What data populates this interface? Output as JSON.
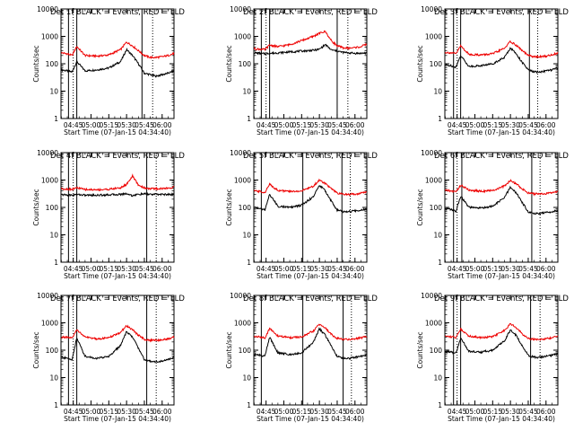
{
  "colors": {
    "events": "#000000",
    "lld": "#ee0000",
    "axis": "#000000",
    "background": "#ffffff"
  },
  "common": {
    "xlabel": "Start Time (07-Jan-15 04:34:40)",
    "ylabel": "Counts/sec",
    "x_tick_labels": [
      "04:45",
      "05:00",
      "05:15",
      "05:30",
      "05:45",
      "06:00"
    ],
    "y_tick_labels": [
      "1",
      "10",
      "100",
      "1000",
      "10000"
    ],
    "y_scale": "log"
  },
  "chart_data": [
    {
      "type": "line",
      "title": "Det 1f BLACK = Events, RED = LLD",
      "xlabel": "Start Time (07-Jan-15 04:34:40)",
      "ylabel": "Counts/sec",
      "xlim": [
        "04:34:40",
        "06:10"
      ],
      "ylim": [
        1,
        10000
      ],
      "yscale": "log",
      "x": [
        "04:35",
        "04:40",
        "04:44",
        "04:48",
        "04:55",
        "05:05",
        "05:15",
        "05:25",
        "05:30",
        "05:35",
        "05:40",
        "05:45",
        "05:50",
        "05:55",
        "06:00",
        "06:05",
        "06:10"
      ],
      "series": [
        {
          "name": "Events",
          "color": "#000000",
          "values": [
            60,
            55,
            50,
            120,
            55,
            60,
            70,
            120,
            330,
            200,
            100,
            45,
            40,
            35,
            40,
            45,
            55
          ]
        },
        {
          "name": "LLD",
          "color": "#ee0000",
          "values": [
            250,
            230,
            200,
            430,
            200,
            190,
            210,
            330,
            620,
            450,
            300,
            200,
            170,
            170,
            180,
            200,
            240
          ]
        }
      ],
      "vlines_solid": [
        "04:41",
        "04:48",
        "05:43"
      ],
      "vlines_dotted": [
        "04:45",
        "05:52"
      ]
    },
    {
      "type": "line",
      "title": "Det 2f BLACK = Events, RED = LLD",
      "xlabel": "Start Time (07-Jan-15 04:34:40)",
      "ylabel": "Counts/sec",
      "xlim": [
        "04:34:40",
        "06:10"
      ],
      "ylim": [
        1,
        10000
      ],
      "yscale": "log",
      "x": [
        "04:35",
        "04:40",
        "04:44",
        "04:48",
        "04:55",
        "05:05",
        "05:15",
        "05:25",
        "05:30",
        "05:35",
        "05:40",
        "05:45",
        "05:50",
        "05:55",
        "06:00",
        "06:05",
        "06:10"
      ],
      "series": [
        {
          "name": "Events",
          "color": "#000000",
          "values": [
            250,
            240,
            230,
            240,
            250,
            270,
            290,
            310,
            340,
            500,
            320,
            290,
            260,
            250,
            240,
            240,
            250
          ]
        },
        {
          "name": "LLD",
          "color": "#ee0000",
          "values": [
            350,
            340,
            330,
            480,
            420,
            500,
            700,
            1000,
            1300,
            1500,
            700,
            450,
            380,
            370,
            390,
            420,
            520
          ]
        }
      ],
      "vlines_solid": [
        "04:41",
        "04:48",
        "05:45"
      ],
      "vlines_dotted": [
        "04:45",
        "05:54"
      ]
    },
    {
      "type": "line",
      "title": "Det 3f BLACK = Events, RED = LLD",
      "xlabel": "Start Time (07-Jan-15 04:34:40)",
      "ylabel": "Counts/sec",
      "xlim": [
        "04:34:40",
        "06:10"
      ],
      "ylim": [
        1,
        10000
      ],
      "yscale": "log",
      "x": [
        "04:35",
        "04:40",
        "04:44",
        "04:48",
        "04:55",
        "05:05",
        "05:15",
        "05:25",
        "05:30",
        "05:35",
        "05:40",
        "05:45",
        "05:50",
        "05:55",
        "06:00",
        "06:05",
        "06:10"
      ],
      "series": [
        {
          "name": "Events",
          "color": "#000000",
          "values": [
            90,
            85,
            75,
            200,
            80,
            85,
            100,
            170,
            380,
            230,
            110,
            60,
            50,
            50,
            55,
            60,
            70
          ]
        },
        {
          "name": "LLD",
          "color": "#ee0000",
          "values": [
            260,
            250,
            230,
            450,
            220,
            210,
            230,
            370,
            650,
            470,
            300,
            200,
            180,
            180,
            190,
            210,
            250
          ]
        }
      ],
      "vlines_solid": [
        "04:42",
        "04:48",
        "05:46"
      ],
      "vlines_dotted": [
        "04:45",
        "05:53"
      ]
    },
    {
      "type": "line",
      "title": "Det 4f BLACK = Events, RED = LLD",
      "xlabel": "Start Time (07-Jan-15 04:34:40)",
      "ylabel": "Counts/sec",
      "xlim": [
        "04:34:40",
        "06:10"
      ],
      "ylim": [
        1,
        10000
      ],
      "yscale": "log",
      "x": [
        "04:35",
        "04:40",
        "04:44",
        "04:48",
        "04:55",
        "05:05",
        "05:15",
        "05:25",
        "05:30",
        "05:35",
        "05:40",
        "05:45",
        "05:50",
        "05:55",
        "06:00",
        "06:05",
        "06:10"
      ],
      "series": [
        {
          "name": "Events",
          "color": "#000000",
          "values": [
            290,
            285,
            280,
            300,
            280,
            280,
            290,
            300,
            320,
            270,
            300,
            310,
            300,
            300,
            300,
            295,
            300
          ]
        },
        {
          "name": "LLD",
          "color": "#ee0000",
          "values": [
            480,
            470,
            460,
            520,
            450,
            440,
            460,
            520,
            700,
            1400,
            650,
            520,
            480,
            480,
            490,
            500,
            560
          ]
        }
      ],
      "vlines_solid": [
        "04:41",
        "04:48",
        "05:47"
      ],
      "vlines_dotted": [
        "04:45",
        "05:55"
      ]
    },
    {
      "type": "line",
      "title": "Det 5f BLACK = Events, RED = LLD",
      "xlabel": "Start Time (07-Jan-15 04:34:40)",
      "ylabel": "Counts/sec",
      "xlim": [
        "04:34:40",
        "06:10"
      ],
      "ylim": [
        1,
        10000
      ],
      "yscale": "log",
      "x": [
        "04:35",
        "04:40",
        "04:44",
        "04:48",
        "04:55",
        "05:05",
        "05:15",
        "05:25",
        "05:30",
        "05:35",
        "05:40",
        "05:45",
        "05:50",
        "05:55",
        "06:00",
        "06:05",
        "06:10"
      ],
      "series": [
        {
          "name": "Events",
          "color": "#000000",
          "values": [
            100,
            90,
            80,
            300,
            110,
            100,
            120,
            250,
            650,
            400,
            170,
            80,
            70,
            70,
            75,
            80,
            90
          ]
        },
        {
          "name": "LLD",
          "color": "#ee0000",
          "values": [
            400,
            380,
            350,
            700,
            420,
            380,
            400,
            600,
            1000,
            750,
            480,
            330,
            300,
            300,
            310,
            330,
            380
          ]
        }
      ],
      "vlines_solid": [
        "04:41",
        "05:16",
        "05:49"
      ],
      "vlines_dotted": [
        "05:56"
      ]
    },
    {
      "type": "line",
      "title": "Det 6f BLACK = Events, RED = LLD",
      "xlabel": "Start Time (07-Jan-15 04:34:40)",
      "ylabel": "Counts/sec",
      "xlim": [
        "04:34:40",
        "06:10"
      ],
      "ylim": [
        1,
        10000
      ],
      "yscale": "log",
      "x": [
        "04:35",
        "04:40",
        "04:44",
        "04:48",
        "04:55",
        "05:05",
        "05:15",
        "05:25",
        "05:30",
        "05:35",
        "05:40",
        "05:45",
        "05:50",
        "05:55",
        "06:00",
        "06:05",
        "06:10"
      ],
      "series": [
        {
          "name": "Events",
          "color": "#000000",
          "values": [
            90,
            85,
            70,
            260,
            100,
            95,
            110,
            230,
            550,
            330,
            150,
            70,
            60,
            60,
            65,
            70,
            80
          ]
        },
        {
          "name": "LLD",
          "color": "#ee0000",
          "values": [
            420,
            400,
            370,
            650,
            430,
            390,
            410,
            600,
            960,
            720,
            470,
            340,
            310,
            310,
            320,
            340,
            390
          ]
        }
      ],
      "vlines_solid": [
        "04:42",
        "04:49",
        "05:48"
      ],
      "vlines_dotted": [
        "04:45",
        "05:55"
      ]
    },
    {
      "type": "line",
      "title": "Det 7f BLACK = Events, RED = LLD",
      "xlabel": "Start Time (07-Jan-15 04:34:40)",
      "ylabel": "Counts/sec",
      "xlim": [
        "04:34:40",
        "06:10"
      ],
      "ylim": [
        1,
        10000
      ],
      "yscale": "log",
      "x": [
        "04:35",
        "04:40",
        "04:44",
        "04:48",
        "04:55",
        "05:05",
        "05:15",
        "05:25",
        "05:30",
        "05:35",
        "05:40",
        "05:45",
        "05:50",
        "05:55",
        "06:00",
        "06:05",
        "06:10"
      ],
      "series": [
        {
          "name": "Events",
          "color": "#000000",
          "values": [
            55,
            50,
            45,
            280,
            60,
            50,
            60,
            150,
            480,
            300,
            120,
            45,
            40,
            38,
            40,
            45,
            55
          ]
        },
        {
          "name": "LLD",
          "color": "#ee0000",
          "values": [
            300,
            290,
            270,
            560,
            300,
            260,
            280,
            450,
            780,
            560,
            350,
            250,
            230,
            230,
            240,
            260,
            300
          ]
        }
      ],
      "vlines_solid": [
        "04:41",
        "04:48",
        "05:47"
      ],
      "vlines_dotted": [
        "04:45",
        "05:55"
      ]
    },
    {
      "type": "line",
      "title": "Det 8f BLACK = Events, RED = LLD",
      "xlabel": "Start Time (07-Jan-15 04:34:40)",
      "ylabel": "Counts/sec",
      "xlim": [
        "04:34:40",
        "06:10"
      ],
      "ylim": [
        1,
        10000
      ],
      "yscale": "log",
      "x": [
        "04:35",
        "04:40",
        "04:44",
        "04:48",
        "04:55",
        "05:05",
        "05:15",
        "05:25",
        "05:30",
        "05:35",
        "05:40",
        "05:45",
        "05:50",
        "05:55",
        "06:00",
        "06:05",
        "06:10"
      ],
      "series": [
        {
          "name": "Events",
          "color": "#000000",
          "values": [
            70,
            65,
            60,
            300,
            80,
            70,
            80,
            200,
            600,
            350,
            140,
            60,
            50,
            50,
            55,
            60,
            70
          ]
        },
        {
          "name": "LLD",
          "color": "#ee0000",
          "values": [
            320,
            300,
            280,
            620,
            330,
            290,
            300,
            500,
            900,
            640,
            380,
            270,
            250,
            250,
            260,
            280,
            320
          ]
        }
      ],
      "vlines_solid": [
        "04:41",
        "05:16",
        "05:50"
      ],
      "vlines_dotted": [
        "05:57"
      ]
    },
    {
      "type": "line",
      "title": "Det 9f BLACK = Events, RED = LLD",
      "xlabel": "Start Time (07-Jan-15 04:34:40)",
      "ylabel": "Counts/sec",
      "xlim": [
        "04:34:40",
        "06:10"
      ],
      "ylim": [
        1,
        10000
      ],
      "yscale": "log",
      "x": [
        "04:35",
        "04:40",
        "04:44",
        "04:48",
        "04:55",
        "05:05",
        "05:15",
        "05:25",
        "05:30",
        "05:35",
        "05:40",
        "05:45",
        "05:50",
        "05:55",
        "06:00",
        "06:05",
        "06:10"
      ],
      "series": [
        {
          "name": "Events",
          "color": "#000000",
          "values": [
            90,
            85,
            75,
            280,
            90,
            85,
            100,
            220,
            560,
            340,
            140,
            65,
            55,
            55,
            60,
            65,
            75
          ]
        },
        {
          "name": "LLD",
          "color": "#ee0000",
          "values": [
            330,
            310,
            290,
            600,
            330,
            290,
            310,
            520,
            920,
            660,
            390,
            270,
            250,
            250,
            260,
            280,
            320
          ]
        }
      ],
      "vlines_solid": [
        "04:42",
        "04:48",
        "05:47"
      ],
      "vlines_dotted": [
        "04:45",
        "05:55"
      ]
    }
  ]
}
